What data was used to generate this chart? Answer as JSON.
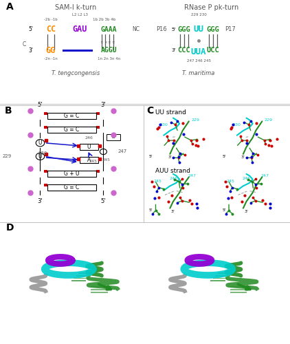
{
  "fig_width": 4.22,
  "fig_height": 5.0,
  "dpi": 100,
  "bg_color": "#ffffff",
  "panel_A": {
    "label": "A",
    "kturn_title": "SAM-I k-turn",
    "pkturn_title": "RNase P pk-turn",
    "kturn": {
      "L_labels": "L2 L2 L3",
      "neg_labels": "-2b -1b",
      "pos_labels": "1b 2b 3b 4b",
      "seq_5prime": "5’",
      "seq_3prime": "3’",
      "top_orange": "CC",
      "top_purple": "GAU",
      "top_green": "GAAA",
      "left_C": "C",
      "bot_orange": "GG",
      "bot_green": "AGGU",
      "neg_n_labels": "-2n -1n",
      "pos_n_labels": "1n 2n 3n 4n",
      "nc_label": "NC",
      "species": "T. tengcongensis"
    },
    "pkturn": {
      "num_top": "229 230",
      "p16": "P16",
      "p17": "P17",
      "top_green1": "GGG",
      "top_cyan": "UU",
      "top_green2": "GGG",
      "bot_green1": "CCC",
      "bot_cyan": "UUA",
      "bot_green2": "UCC",
      "bot_nums": "247 246 245",
      "species": "T. maritima"
    }
  },
  "colors": {
    "orange": "#FF8C00",
    "purple": "#9400D3",
    "green": "#228B22",
    "cyan": "#00CCCC",
    "blue": "#1515CC",
    "red": "#CC0000",
    "pink": "#CC66CC",
    "dark_gray": "#555555",
    "black": "#000000",
    "light_gray": "#aaaaaa",
    "mid_gray": "#888888"
  }
}
